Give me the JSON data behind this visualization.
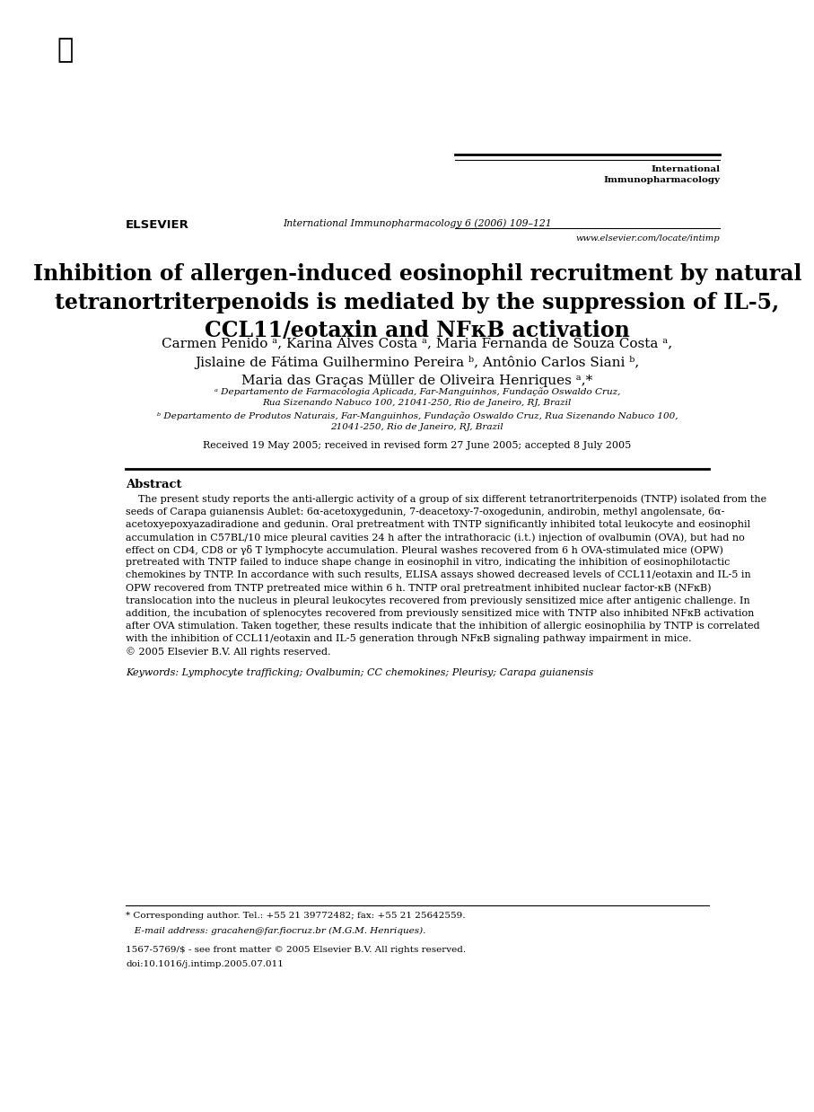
{
  "bg_color": "#ffffff",
  "header": {
    "journal_center": "International Immunopharmacology 6 (2006) 109–121",
    "journal_right_top": "International\nImmunopharmacology",
    "journal_right_bottom": "www.elsevier.com/locate/intimp",
    "elsevier_text": "ELSEVIER"
  },
  "title": "Inhibition of allergen-induced eosinophil recruitment by natural\ntetranortriterpenoids is mediated by the suppression of IL-5,\nCCL11/eotaxin and NFκB activation",
  "authors": "Carmen Penido ᵃ, Karina Alves Costa ᵃ, Maria Fernanda de Souza Costa ᵃ,\nJislaine de Fátima Guilhermino Pereira ᵇ, Antônio Carlos Siani ᵇ,\nMaria das Graças Müller de Oliveira Henriques ᵃ,*",
  "affil_a": "ᵃ Departamento de Farmacologia Aplicada, Far-Manguinhos, Fundação Oswaldo Cruz,\nRua Sizenando Nabuco 100, 21041-250, Rio de Janeiro, RJ, Brazil",
  "affil_b": "ᵇ Departamento de Produtos Naturais, Far-Manguinhos, Fundação Oswaldo Cruz, Rua Sizenando Nabuco 100,\n21041-250, Rio de Janeiro, RJ, Brazil",
  "received": "Received 19 May 2005; received in revised form 27 June 2005; accepted 8 July 2005",
  "abstract_title": "Abstract",
  "abstract_lines": [
    "    The present study reports the anti-allergic activity of a group of six different tetranortriterpenoids (TNTP) isolated from the",
    "seeds of Carapa guianensis Aublet: 6α-acetoxygedunin, 7-deacetoxy-7-oxogedunin, andirobin, methyl angolensate, 6α-",
    "acetoxyepoxyazadiradione and gedunin. Oral pretreatment with TNTP significantly inhibited total leukocyte and eosinophil",
    "accumulation in C57BL/10 mice pleural cavities 24 h after the intrathoracic (i.t.) injection of ovalbumin (OVA), but had no",
    "effect on CD4, CD8 or γδ T lymphocyte accumulation. Pleural washes recovered from 6 h OVA-stimulated mice (OPW)",
    "pretreated with TNTP failed to induce shape change in eosinophil in vitro, indicating the inhibition of eosinophilotactic",
    "chemokines by TNTP. In accordance with such results, ELISA assays showed decreased levels of CCL11/eotaxin and IL-5 in",
    "OPW recovered from TNTP pretreated mice within 6 h. TNTP oral pretreatment inhibited nuclear factor-κB (NFκB)",
    "translocation into the nucleus in pleural leukocytes recovered from previously sensitized mice after antigenic challenge. In",
    "addition, the incubation of splenocytes recovered from previously sensitized mice with TNTP also inhibited NFκB activation",
    "after OVA stimulation. Taken together, these results indicate that the inhibition of allergic eosinophilia by TNTP is correlated",
    "with the inhibition of CCL11/eotaxin and IL-5 generation through NFκB signaling pathway impairment in mice.",
    "© 2005 Elsevier B.V. All rights reserved."
  ],
  "keywords": "Keywords: Lymphocyte trafficking; Ovalbumin; CC chemokines; Pleurisy; Carapa guianensis",
  "footnote_star": "* Corresponding author. Tel.: +55 21 39772482; fax: +55 21 25642559.",
  "footnote_email": "   E-mail address: gracahen@far.fiocruz.br (M.G.M. Henriques).",
  "footnote_issn": "1567-5769/$ - see front matter © 2005 Elsevier B.V. All rights reserved.",
  "footnote_doi": "doi:10.1016/j.intimp.2005.07.011"
}
